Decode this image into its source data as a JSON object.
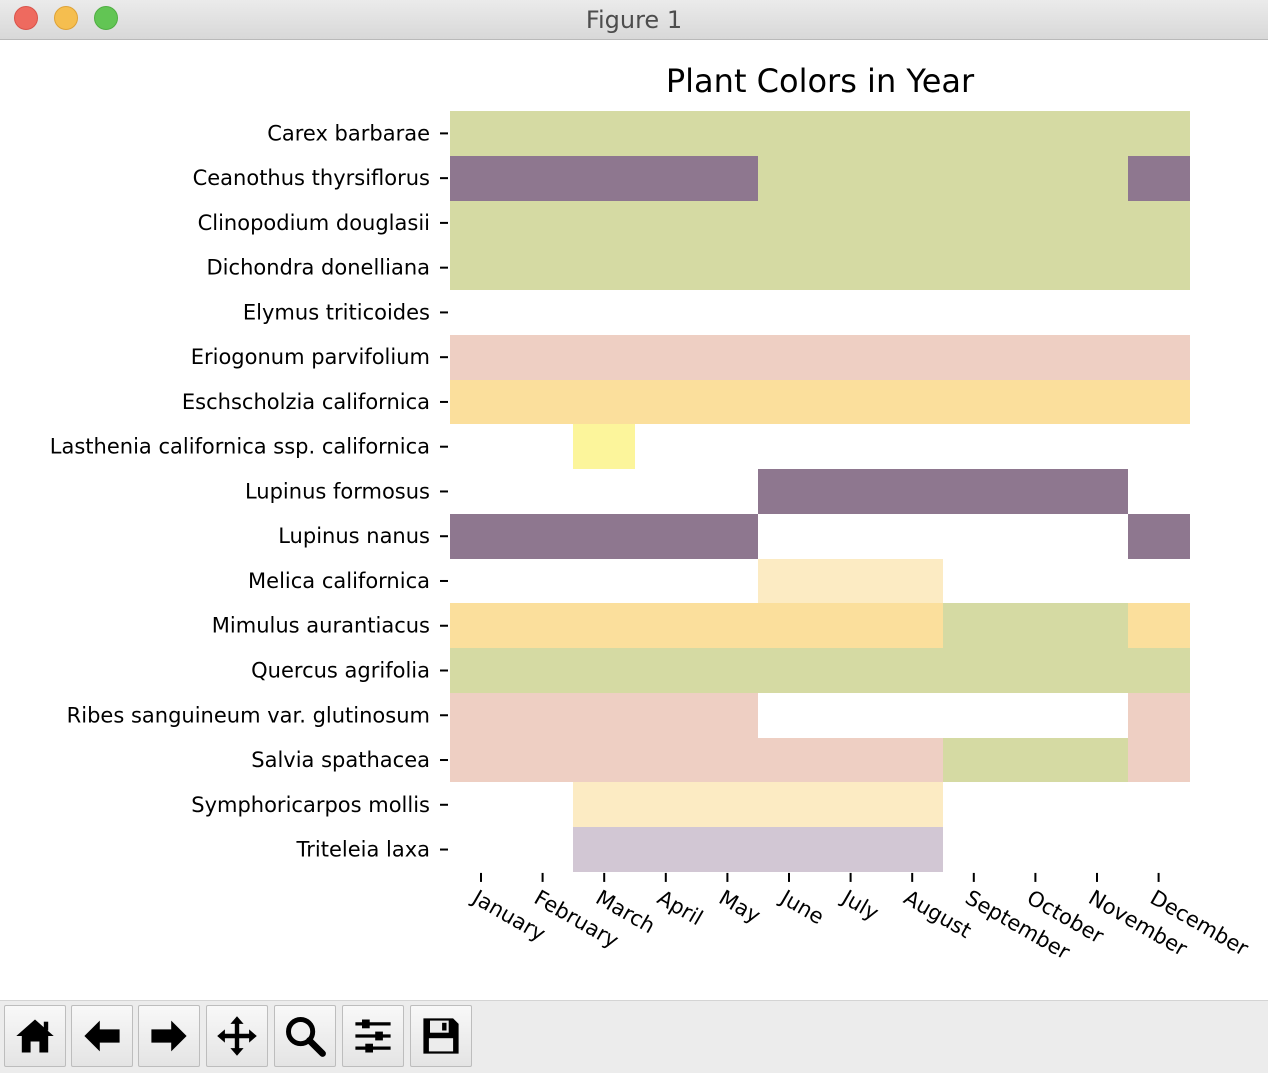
{
  "window": {
    "title": "Figure 1"
  },
  "toolbar": {
    "buttons": [
      {
        "icon": "home-icon"
      },
      {
        "icon": "back-arrow-icon"
      },
      {
        "icon": "forward-arrow-icon"
      },
      {
        "icon": "pan-icon"
      },
      {
        "icon": "zoom-icon"
      },
      {
        "icon": "configure-subplots-icon"
      },
      {
        "icon": "save-icon"
      }
    ]
  },
  "chart_data": {
    "type": "heatmap",
    "title": "Plant Colors in Year",
    "xlabel": "",
    "ylabel": "",
    "grid": false,
    "months": [
      "January",
      "February",
      "March",
      "April",
      "May",
      "June",
      "July",
      "August",
      "September",
      "October",
      "November",
      "December"
    ],
    "colors": {
      "G": "#d5daa3",
      "P": "#8e778f",
      "K": "#eecfc3",
      "O": "#fbdf9c",
      "Y": "#fcf59b",
      "C": "#fcebc3",
      "L": "#d2c7d4",
      "W": "#ffffff"
    },
    "plants": [
      {
        "name": "Carex barbarae",
        "months": [
          "G",
          "G",
          "G",
          "G",
          "G",
          "G",
          "G",
          "G",
          "G",
          "G",
          "G",
          "G"
        ]
      },
      {
        "name": "Ceanothus thyrsiflorus",
        "months": [
          "P",
          "P",
          "P",
          "P",
          "P",
          "G",
          "G",
          "G",
          "G",
          "G",
          "G",
          "P"
        ]
      },
      {
        "name": "Clinopodium douglasii",
        "months": [
          "G",
          "G",
          "G",
          "G",
          "G",
          "G",
          "G",
          "G",
          "G",
          "G",
          "G",
          "G"
        ]
      },
      {
        "name": "Dichondra donelliana",
        "months": [
          "G",
          "G",
          "G",
          "G",
          "G",
          "G",
          "G",
          "G",
          "G",
          "G",
          "G",
          "G"
        ]
      },
      {
        "name": "Elymus triticoides",
        "months": [
          "W",
          "W",
          "W",
          "W",
          "W",
          "W",
          "W",
          "W",
          "W",
          "W",
          "W",
          "W"
        ]
      },
      {
        "name": "Eriogonum parvifolium",
        "months": [
          "K",
          "K",
          "K",
          "K",
          "K",
          "K",
          "K",
          "K",
          "K",
          "K",
          "K",
          "K"
        ]
      },
      {
        "name": "Eschscholzia californica",
        "months": [
          "O",
          "O",
          "O",
          "O",
          "O",
          "O",
          "O",
          "O",
          "O",
          "O",
          "O",
          "O"
        ]
      },
      {
        "name": "Lasthenia californica ssp. californica",
        "months": [
          "W",
          "W",
          "Y",
          "W",
          "W",
          "W",
          "W",
          "W",
          "W",
          "W",
          "W",
          "W"
        ]
      },
      {
        "name": "Lupinus formosus",
        "months": [
          "W",
          "W",
          "W",
          "W",
          "W",
          "P",
          "P",
          "P",
          "P",
          "P",
          "P",
          "W"
        ]
      },
      {
        "name": "Lupinus nanus",
        "months": [
          "P",
          "P",
          "P",
          "P",
          "P",
          "W",
          "W",
          "W",
          "W",
          "W",
          "W",
          "P"
        ]
      },
      {
        "name": "Melica californica",
        "months": [
          "W",
          "W",
          "W",
          "W",
          "W",
          "C",
          "C",
          "C",
          "W",
          "W",
          "W",
          "W"
        ]
      },
      {
        "name": "Mimulus aurantiacus",
        "months": [
          "O",
          "O",
          "O",
          "O",
          "O",
          "O",
          "O",
          "O",
          "G",
          "G",
          "G",
          "O"
        ]
      },
      {
        "name": "Quercus agrifolia",
        "months": [
          "G",
          "G",
          "G",
          "G",
          "G",
          "G",
          "G",
          "G",
          "G",
          "G",
          "G",
          "G"
        ]
      },
      {
        "name": "Ribes sanguineum var. glutinosum",
        "months": [
          "K",
          "K",
          "K",
          "K",
          "K",
          "W",
          "W",
          "W",
          "W",
          "W",
          "W",
          "K"
        ]
      },
      {
        "name": "Salvia spathacea",
        "months": [
          "K",
          "K",
          "K",
          "K",
          "K",
          "K",
          "K",
          "K",
          "G",
          "G",
          "G",
          "K"
        ]
      },
      {
        "name": "Symphoricarpos mollis",
        "months": [
          "W",
          "W",
          "C",
          "C",
          "C",
          "C",
          "C",
          "C",
          "W",
          "W",
          "W",
          "W"
        ]
      },
      {
        "name": "Triteleia laxa",
        "months": [
          "W",
          "W",
          "L",
          "L",
          "L",
          "L",
          "L",
          "L",
          "W",
          "W",
          "W",
          "W"
        ]
      }
    ]
  }
}
